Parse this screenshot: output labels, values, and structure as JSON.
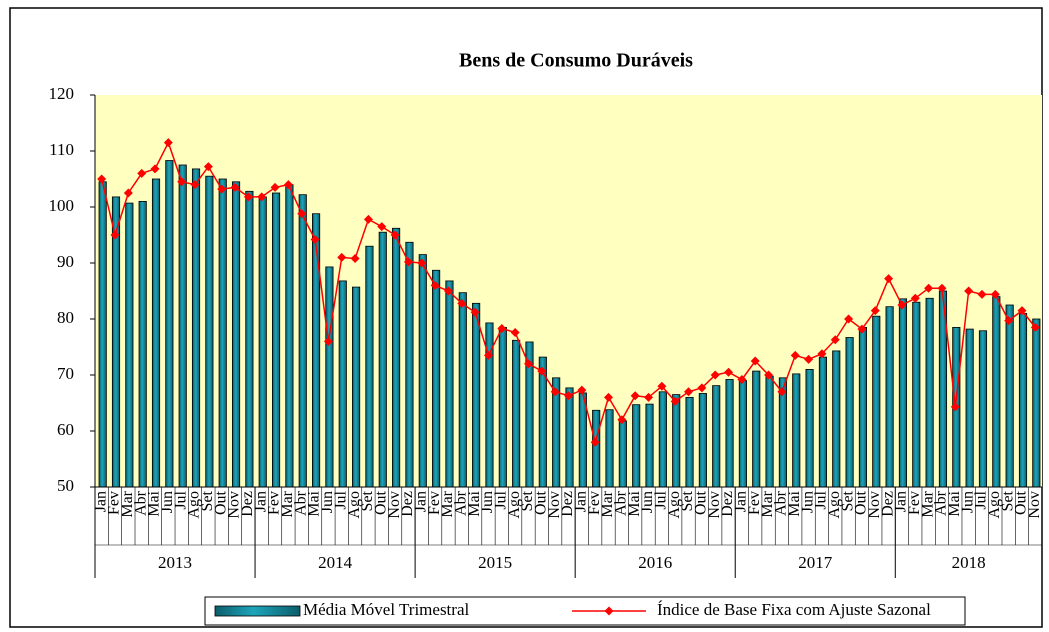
{
  "chart_data": {
    "type": "combo",
    "title": "Bens de Consumo Duráveis",
    "categories": [
      "Jan",
      "Fev",
      "Mar",
      "Abr",
      "Mai",
      "Jun",
      "Jul",
      "Ago",
      "Set",
      "Out",
      "Nov",
      "Dez",
      "Jan",
      "Fev",
      "Mar",
      "Abr",
      "Mai",
      "Jun",
      "Jul",
      "Ago",
      "Set",
      "Out",
      "Nov",
      "Dez",
      "Jan",
      "Fev",
      "Mar",
      "Abr",
      "Mai",
      "Jun",
      "Jul",
      "Ago",
      "Set",
      "Out",
      "Nov",
      "Dez",
      "Jan",
      "Fev",
      "Mar",
      "Abr",
      "Mai",
      "Jun",
      "Jul",
      "Ago",
      "Set",
      "Out",
      "Nov",
      "Dez",
      "Jan",
      "Fev",
      "Mar",
      "Abr",
      "Mai",
      "Jun",
      "Jul",
      "Ago",
      "Set",
      "Out",
      "Nov",
      "Dez",
      "Jan",
      "Fev",
      "Mar",
      "Abr",
      "Mai",
      "Jun",
      "Jul",
      "Ago",
      "Set",
      "Out",
      "Nov"
    ],
    "year_groups": [
      "2013",
      "2014",
      "2015",
      "2016",
      "2017",
      "2018"
    ],
    "series": [
      {
        "name": "Média Móvel Trimestral",
        "kind": "bar",
        "color": "#1ea5ba",
        "values": [
          104.5,
          101.8,
          100.7,
          101,
          105,
          108.3,
          107.5,
          106.8,
          105.5,
          105,
          104.5,
          102.8,
          101.8,
          102.5,
          104,
          102.2,
          98.8,
          89.3,
          86.8,
          85.7,
          93,
          95.5,
          96.2,
          93.7,
          91.5,
          88.7,
          86.8,
          84.7,
          82.8,
          79.3,
          78.5,
          76.2,
          75.9,
          73.2,
          69.5,
          67.7,
          66.8,
          63.7,
          63.8,
          61.8,
          64.7,
          64.8,
          67,
          66.5,
          66,
          66.7,
          68.1,
          69.2,
          69,
          70.7,
          69.8,
          69.5,
          70.2,
          71,
          73.2,
          74.3,
          76.7,
          78.5,
          80.5,
          82.2,
          83.6,
          83,
          83.7,
          85,
          78.5,
          78.2,
          77.9,
          84,
          82.5,
          81,
          80
        ]
      },
      {
        "name": "Índice de Base Fixa com Ajuste Sazonal",
        "kind": "line",
        "color": "#ff0000",
        "values": [
          105,
          95,
          102.5,
          106,
          106.8,
          111.5,
          104.5,
          104,
          107.2,
          103.2,
          103.5,
          101.8,
          101.8,
          103.5,
          104,
          98.8,
          94.2,
          76,
          91,
          90.8,
          97.8,
          96.5,
          95,
          90.2,
          90,
          86,
          85,
          82.8,
          81.2,
          73.5,
          78.3,
          77.6,
          72,
          70.7,
          67,
          66.3,
          67.3,
          58,
          66,
          62,
          66.3,
          66,
          68,
          65.3,
          67,
          67.7,
          70,
          70.5,
          69.2,
          72.5,
          70,
          67,
          73.5,
          72.8,
          73.8,
          76.3,
          80,
          78.2,
          81.5,
          87.2,
          82.5,
          83.7,
          85.5,
          85.5,
          64.3,
          85,
          84.4,
          84.4,
          79.7,
          81.5,
          78.5
        ]
      }
    ],
    "ylim": [
      50,
      120
    ],
    "yticks": [
      50,
      60,
      70,
      80,
      90,
      100,
      110,
      120
    ],
    "grid": false,
    "plot_background": "#ffffc0",
    "legend": "bottom"
  }
}
